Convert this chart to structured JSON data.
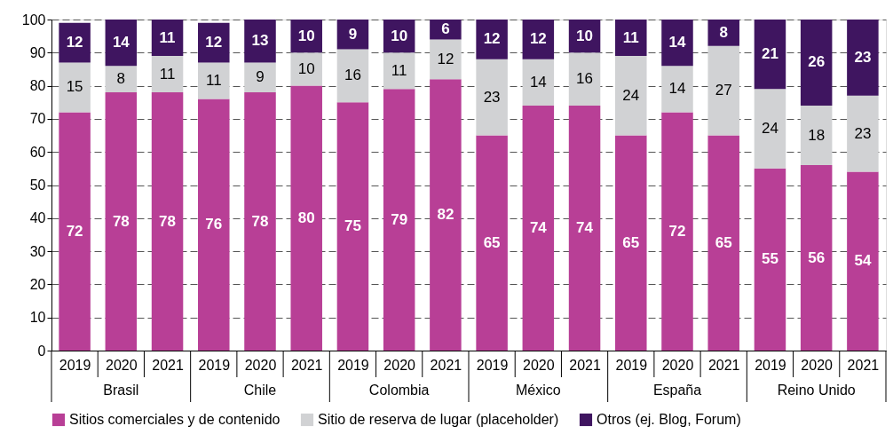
{
  "chart_data": {
    "type": "bar",
    "stacked": true,
    "data_labels": true,
    "grid": "y",
    "legend": "bottom",
    "categories": [
      "2019",
      "2020",
      "2021",
      "2019",
      "2020",
      "2021",
      "2019",
      "2020",
      "2021",
      "2019",
      "2020",
      "2021",
      "2019",
      "2020",
      "2021",
      "2019",
      "2020",
      "2021"
    ],
    "annotations": [
      "Brasil",
      "Chile",
      "Colombia",
      "México",
      "España",
      "Reino Unido"
    ],
    "ylim": [
      0,
      100
    ],
    "yticks": [
      0,
      10,
      20,
      30,
      40,
      50,
      60,
      70,
      80,
      90,
      100
    ],
    "series": [
      {
        "name": "Sitios comerciales y de contenido",
        "color": "#b83f96",
        "values": [
          72,
          78,
          78,
          76,
          78,
          80,
          75,
          79,
          82,
          65,
          74,
          74,
          65,
          72,
          65,
          55,
          56,
          54
        ]
      },
      {
        "name": "Sitio de reserva de lugar (placeholder)",
        "color": "#d1d2d4",
        "values": [
          15,
          8,
          11,
          11,
          9,
          10,
          16,
          11,
          12,
          23,
          14,
          16,
          24,
          14,
          27,
          24,
          18,
          23
        ]
      },
      {
        "name": "Otros (ej. Blog, Forum)",
        "color": "#3f1560",
        "values": [
          12,
          14,
          11,
          12,
          13,
          10,
          9,
          10,
          6,
          12,
          12,
          10,
          11,
          14,
          8,
          21,
          26,
          23
        ]
      }
    ]
  }
}
